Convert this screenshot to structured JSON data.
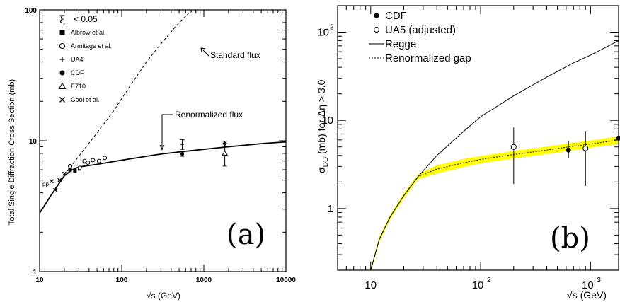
{
  "chart_data": [
    {
      "panel": "(a)",
      "type": "scatter",
      "xlabel": "√s (GeV)",
      "ylabel": "Total Single Diffraction Cross Section (mb)",
      "xscale": "log",
      "yscale": "log",
      "xlim": [
        10,
        10000
      ],
      "ylim": [
        1,
        100
      ],
      "x_ticks": [
        "10",
        "100",
        "1000",
        "10000"
      ],
      "y_ticks": [
        "1",
        "10",
        "100"
      ],
      "legend": {
        "placement": "top-left",
        "header": "ξ < 0.05",
        "header_symbol": "ξ",
        "header_text": "< 0.05",
        "entries": [
          {
            "label": "Albrow et al.",
            "marker": "filled-square"
          },
          {
            "label": "Armitage et al.",
            "marker": "open-circle"
          },
          {
            "label": "UA4",
            "marker": "plus"
          },
          {
            "label": "CDF",
            "marker": "filled-circle"
          },
          {
            "label": "E710",
            "marker": "open-triangle"
          },
          {
            "label": "Cool et al.",
            "marker": "cross"
          }
        ]
      },
      "annotations": [
        "Standard flux",
        "Renormalized flux",
        "pp̄"
      ],
      "panel_label": "(a)",
      "curves": [
        {
          "name": "Standard flux",
          "style": "dashed",
          "x": [
            10,
            14,
            20,
            30,
            50,
            80,
            120,
            200,
            300,
            500,
            700
          ],
          "y": [
            2.8,
            3.9,
            5.5,
            7.6,
            11.5,
            17,
            25,
            40,
            55,
            80,
            98
          ]
        },
        {
          "name": "Renormalized flux",
          "style": "solid",
          "x": [
            10,
            14,
            20,
            25,
            30,
            50,
            100,
            200,
            300,
            500,
            1000,
            2000,
            5000,
            10000
          ],
          "y": [
            2.8,
            3.9,
            5.4,
            6.0,
            6.3,
            6.6,
            7.1,
            7.6,
            7.9,
            8.2,
            8.6,
            9.0,
            9.5,
            9.8
          ]
        }
      ],
      "series": [
        {
          "name": "Albrow et al.",
          "marker": "filled-square",
          "points": [
            {
              "x": 23.5,
              "y": 6.0
            },
            {
              "x": 26.9,
              "y": 5.9
            },
            {
              "x": 30.7,
              "y": 6.1
            },
            {
              "x": 35.2,
              "y": 6.9
            }
          ]
        },
        {
          "name": "Armitage et al.",
          "marker": "open-circle",
          "points": [
            {
              "x": 23.5,
              "y": 6.4
            },
            {
              "x": 30.7,
              "y": 6.2
            },
            {
              "x": 35.2,
              "y": 7.0
            },
            {
              "x": 38.8,
              "y": 6.8
            },
            {
              "x": 44.6,
              "y": 7.1
            },
            {
              "x": 52.8,
              "y": 7.0
            },
            {
              "x": 62.3,
              "y": 7.4
            }
          ]
        },
        {
          "name": "UA4",
          "marker": "plus",
          "points": [
            {
              "x": 546,
              "y": 9.4,
              "err": 0.8
            }
          ]
        },
        {
          "name": "CDF",
          "marker": "filled-circle",
          "points": [
            {
              "x": 546,
              "y": 7.9,
              "err": 0.3
            },
            {
              "x": 1800,
              "y": 9.5,
              "err": 0.4
            }
          ]
        },
        {
          "name": "E710",
          "marker": "open-triangle",
          "points": [
            {
              "x": 1800,
              "y": 8.0,
              "err": 1.6
            }
          ]
        },
        {
          "name": "Cool et al.",
          "marker": "cross",
          "points": [
            {
              "x": 14,
              "y": 4.9
            },
            {
              "x": 15.5,
              "y": 4.2
            },
            {
              "x": 17.5,
              "y": 5.0
            },
            {
              "x": 20,
              "y": 5.6
            }
          ]
        }
      ]
    },
    {
      "panel": "(b)",
      "type": "line",
      "xlabel": "√s (GeV)",
      "ylabel": "σ_DD (mb) for Δη > 3.0",
      "ylabel_sigma": "σ",
      "ylabel_sub": "DD",
      "ylabel_rest": " (mb) for Δη > 3.0",
      "xscale": "log",
      "yscale": "log",
      "xlim": [
        5,
        1800
      ],
      "ylim": [
        0.2,
        200
      ],
      "x_ticks": [
        "10",
        "10²",
        "10³"
      ],
      "y_ticks": [
        "1",
        "10",
        "10²"
      ],
      "legend": {
        "placement": "top-left",
        "entries": [
          {
            "label": "CDF",
            "marker": "filled-circle"
          },
          {
            "label": "UA5 (adjusted)",
            "marker": "open-circle"
          },
          {
            "label": "Regge",
            "marker": "solid-line"
          },
          {
            "label": "Renormalized gap",
            "marker": "dashed-line"
          }
        ]
      },
      "panel_label": "(b)",
      "band_color": "#ffff00",
      "curves": [
        {
          "name": "Regge",
          "style": "solid",
          "x": [
            10,
            12,
            15,
            20,
            27,
            40,
            70,
            100,
            200,
            400,
            700,
            1000,
            1800
          ],
          "y": [
            0.2,
            0.45,
            0.8,
            1.4,
            2.3,
            4.0,
            7.5,
            11,
            19,
            31,
            45,
            55,
            80
          ]
        },
        {
          "name": "Renormalized gap",
          "style": "dashed",
          "x": [
            10,
            12,
            15,
            20,
            27,
            40,
            70,
            100,
            200,
            400,
            700,
            1000,
            1800
          ],
          "y": [
            0.2,
            0.45,
            0.8,
            1.4,
            2.3,
            2.8,
            3.3,
            3.6,
            4.1,
            4.6,
            5.1,
            5.4,
            6.0
          ],
          "band_low": [
            0.19,
            0.42,
            0.75,
            1.3,
            2.15,
            2.5,
            2.95,
            3.25,
            3.7,
            4.15,
            4.6,
            4.9,
            5.4
          ],
          "band_high": [
            0.21,
            0.48,
            0.85,
            1.5,
            2.45,
            3.1,
            3.65,
            3.95,
            4.5,
            5.05,
            5.6,
            5.9,
            6.6
          ]
        }
      ],
      "series": [
        {
          "name": "CDF",
          "marker": "filled-circle",
          "points": [
            {
              "x": 630,
              "y": 4.6,
              "lo": 3.7,
              "hi": 5.8
            },
            {
              "x": 1800,
              "y": 6.3,
              "lo": 4.9,
              "hi": 7.8
            }
          ]
        },
        {
          "name": "UA5 (adjusted)",
          "marker": "open-circle",
          "points": [
            {
              "x": 200,
              "y": 5.0,
              "lo": 1.9,
              "hi": 8.3
            },
            {
              "x": 900,
              "y": 4.8,
              "lo": 1.8,
              "hi": 7.6
            }
          ]
        }
      ]
    }
  ]
}
